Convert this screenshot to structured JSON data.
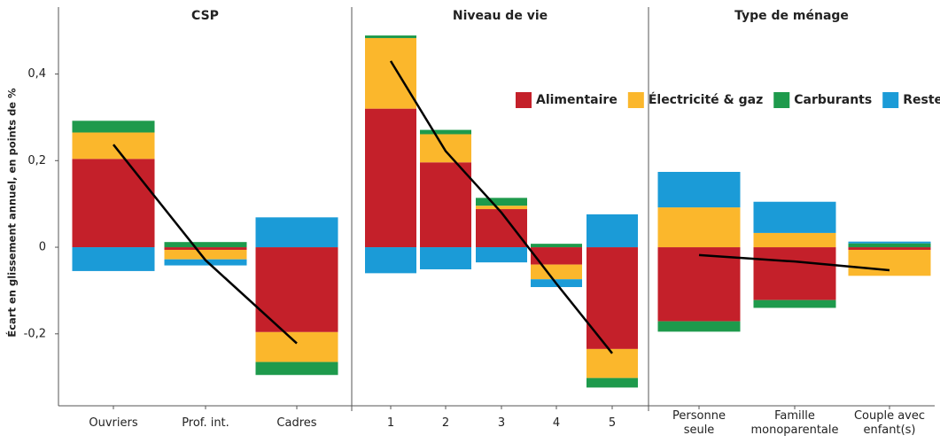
{
  "chart_data": {
    "type": "bar",
    "stacked": true,
    "ylabel": "Écart en glissement annuel, en points de %",
    "ylim": [
      -0.36,
      0.53
    ],
    "yticks": [
      {
        "value": -0.2,
        "label": "-0,2"
      },
      0,
      {
        "value": 0.2,
        "label": "0,2"
      },
      {
        "value": 0.4,
        "label": "0,4"
      }
    ],
    "legend": "upper right",
    "line_color": "#000000",
    "series": [
      {
        "name": "Alimentaire",
        "color": "#c4202a"
      },
      {
        "name": "Électricité & gaz",
        "color": "#fbb72c"
      },
      {
        "name": "Carburants",
        "color": "#1e9a4c"
      },
      {
        "name": "Reste",
        "color": "#1b9bd7"
      }
    ],
    "panels": [
      {
        "title": "CSP",
        "categories": [
          "Ouvriers",
          "Prof. int.",
          "Cadres"
        ],
        "series_values": [
          [
            0.204,
            -0.006,
            -0.196
          ],
          [
            0.061,
            -0.022,
            -0.069
          ],
          [
            0.027,
            0.012,
            -0.03
          ],
          [
            -0.055,
            -0.014,
            0.069
          ]
        ],
        "line_values": [
          0.237,
          -0.03,
          -0.222
        ]
      },
      {
        "title": "Niveau de vie",
        "categories": [
          "1",
          "2",
          "3",
          "4",
          "5"
        ],
        "series_values": [
          [
            0.32,
            0.196,
            0.088,
            -0.04,
            -0.235
          ],
          [
            0.163,
            0.065,
            0.008,
            -0.034,
            -0.067
          ],
          [
            0.006,
            0.01,
            0.018,
            0.008,
            -0.022
          ],
          [
            -0.06,
            -0.051,
            -0.035,
            -0.018,
            0.076
          ]
        ],
        "line_values": [
          0.43,
          0.222,
          0.08,
          -0.084,
          -0.245
        ]
      },
      {
        "title": "Type de ménage",
        "categories": [
          "Personne\nseule",
          "Famille\nmonoparentale",
          "Couple avec\nenfant(s)"
        ],
        "series_values": [
          [
            -0.171,
            -0.122,
            -0.006
          ],
          [
            0.092,
            0.033,
            -0.06
          ],
          [
            -0.024,
            -0.018,
            0.009
          ],
          [
            0.082,
            0.072,
            0.004
          ]
        ],
        "line_values": [
          -0.018,
          -0.033,
          -0.053
        ]
      }
    ]
  }
}
